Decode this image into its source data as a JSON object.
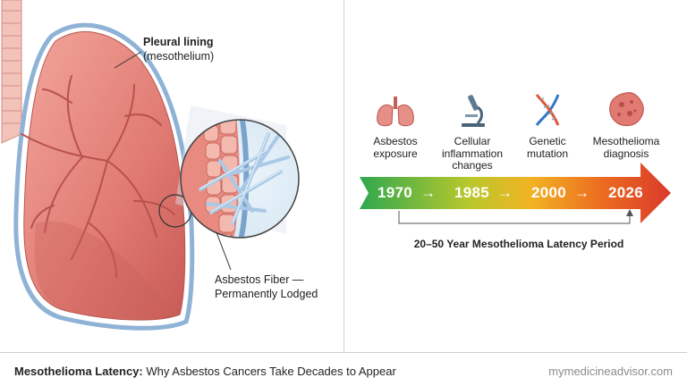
{
  "anatomy": {
    "pleural_title": "Pleural lining",
    "pleural_sub": "(mesothelium)",
    "fiber_line1": "Asbestos Fiber —",
    "fiber_line2": "Permanently Lodged"
  },
  "timeline": {
    "stages": [
      {
        "line1": "Asbestos",
        "line2": "exposure",
        "line3": "",
        "icon": "lungs-icon"
      },
      {
        "line1": "Cellular",
        "line2": "inflammation",
        "line3": "changes",
        "icon": "microscope-icon"
      },
      {
        "line1": "Genetic",
        "line2": "mutation",
        "line3": "",
        "icon": "dna-icon"
      },
      {
        "line1": "Mesothelioma",
        "line2": "diagnosis",
        "line3": "",
        "icon": "tumor-cell-icon"
      }
    ],
    "years": [
      "1970",
      "1985",
      "2000",
      "2026"
    ],
    "separator": "→",
    "latency_label": "20–50 Year Mesothelioma Latency Period"
  },
  "footer": {
    "title_bold": "Mesothelioma Latency:",
    "title_rest": " Why Asbestos Cancers Take Decades to Appear",
    "site": "mymedicineadvisor.com"
  },
  "colors": {
    "lung": "#e07a72",
    "pleura": "#8fb3d6",
    "arrow_start": "#2fa84f",
    "arrow_end": "#d93a2b"
  }
}
